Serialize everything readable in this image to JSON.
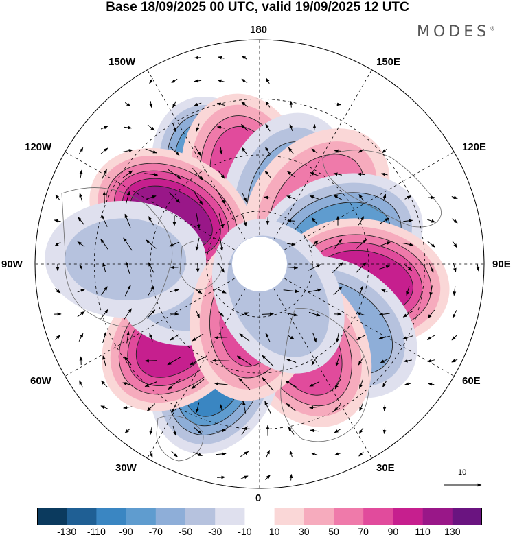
{
  "title": "Base 18/09/2025 00 UTC, valid 19/09/2025 12 UTC",
  "brand": {
    "name": "MODES",
    "mark": "®"
  },
  "longitude_labels": {
    "lon_180": "180",
    "lon_150e": "150E",
    "lon_120e": "120E",
    "lon_90e": "90E",
    "lon_60e": "60E",
    "lon_30e": "30E",
    "lon_0": "0",
    "lon_30w": "30W",
    "lon_60w": "60W",
    "lon_90w": "90W",
    "lon_120w": "120W",
    "lon_150w": "150W"
  },
  "reference_vector": {
    "value": "10"
  },
  "colorbar": {
    "bins": [
      {
        "color": "#0b3a5e"
      },
      {
        "color": "#1f5f94"
      },
      {
        "color": "#3a86c2"
      },
      {
        "color": "#5f9ccf"
      },
      {
        "color": "#8eaed8"
      },
      {
        "color": "#b6c2de"
      },
      {
        "color": "#dfe0ee"
      },
      {
        "color": "#ffffff"
      },
      {
        "color": "#fad7d7"
      },
      {
        "color": "#f6abbd"
      },
      {
        "color": "#ef7aaa"
      },
      {
        "color": "#e14b9c"
      },
      {
        "color": "#c61f8e"
      },
      {
        "color": "#991788"
      },
      {
        "color": "#6a1480"
      }
    ],
    "tick_labels": [
      "-130",
      "-110",
      "-90",
      "-70",
      "-50",
      "-30",
      "-10",
      "10",
      "30",
      "50",
      "70",
      "90",
      "110",
      "130"
    ]
  },
  "anomaly_centers": [
    {
      "name": "neg-center-150w",
      "lon": -155,
      "colat": 30,
      "value": -110
    },
    {
      "name": "pos-center-165w",
      "lon": -170,
      "colat": 28,
      "value": 80
    },
    {
      "name": "neg-center-160e",
      "lon": 160,
      "colat": 24,
      "value": -55
    },
    {
      "name": "pos-center-135e",
      "lon": 137,
      "colat": 27,
      "value": 60
    },
    {
      "name": "neg-center-110e",
      "lon": 108,
      "colat": 27,
      "value": -80
    },
    {
      "name": "pos-center-80e",
      "lon": 80,
      "colat": 34,
      "value": 100
    },
    {
      "name": "neg-center-55e",
      "lon": 52,
      "colat": 33,
      "value": -65
    },
    {
      "name": "pos-center-30e",
      "lon": 28,
      "colat": 30,
      "value": 80
    },
    {
      "name": "neg-center-20w",
      "lon": -22,
      "colat": 37,
      "value": -95
    },
    {
      "name": "pos-center-50w",
      "lon": -48,
      "colat": 35,
      "value": 100
    },
    {
      "name": "neg-center-75w",
      "lon": -72,
      "colat": 20,
      "value": -45
    },
    {
      "name": "pos-center-120w",
      "lon": -118,
      "colat": 32,
      "value": 110
    },
    {
      "name": "neg-center-95w",
      "lon": -92,
      "colat": 43,
      "value": -35
    },
    {
      "name": "pos-center-10w",
      "lon": -8,
      "colat": 17,
      "value": 75
    },
    {
      "name": "neg-center-30e-high",
      "lon": 30,
      "colat": 12,
      "value": -45
    }
  ]
}
